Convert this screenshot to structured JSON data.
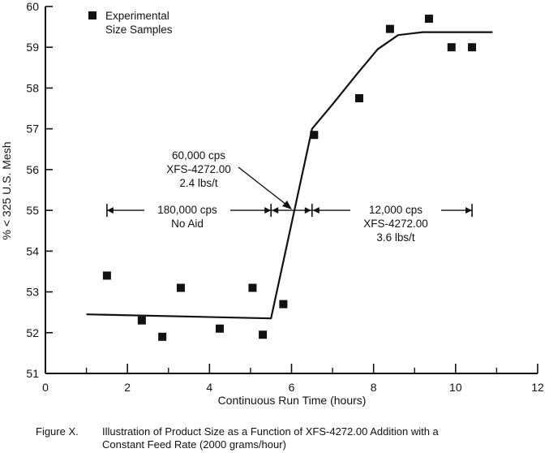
{
  "chart_data": {
    "type": "scatter",
    "xlabel": "Continuous Run Time (hours)",
    "ylabel": "% < 325 U.S. Mesh",
    "xlim": [
      0,
      12
    ],
    "ylim": [
      51,
      60
    ],
    "x_ticks": [
      0,
      2,
      4,
      6,
      8,
      10,
      12
    ],
    "y_ticks": [
      51,
      52,
      53,
      54,
      55,
      56,
      57,
      58,
      59,
      60
    ],
    "legend": {
      "position": "top-left",
      "marker": "square",
      "line1": "Experimental",
      "line2": "Size Samples"
    },
    "series": [
      {
        "name": "Experimental Size Samples",
        "type": "scatter",
        "points": [
          {
            "x": 1.5,
            "y": 53.4
          },
          {
            "x": 2.35,
            "y": 52.3
          },
          {
            "x": 2.85,
            "y": 51.9
          },
          {
            "x": 3.3,
            "y": 53.1
          },
          {
            "x": 4.25,
            "y": 52.1
          },
          {
            "x": 5.05,
            "y": 53.1
          },
          {
            "x": 5.3,
            "y": 51.95
          },
          {
            "x": 5.8,
            "y": 52.7
          },
          {
            "x": 6.55,
            "y": 56.85
          },
          {
            "x": 7.65,
            "y": 57.75
          },
          {
            "x": 8.4,
            "y": 59.45
          },
          {
            "x": 9.35,
            "y": 59.7
          },
          {
            "x": 9.9,
            "y": 59.0
          },
          {
            "x": 10.4,
            "y": 59.0
          }
        ]
      },
      {
        "type": "line",
        "points": [
          {
            "x": 1.0,
            "y": 52.45
          },
          {
            "x": 5.5,
            "y": 52.35
          },
          {
            "x": 6.5,
            "y": 57.0
          },
          {
            "x": 7.0,
            "y": 57.6
          },
          {
            "x": 7.6,
            "y": 58.35
          },
          {
            "x": 8.1,
            "y": 58.95
          },
          {
            "x": 8.6,
            "y": 59.3
          },
          {
            "x": 9.2,
            "y": 59.37
          },
          {
            "x": 10.9,
            "y": 59.37
          }
        ]
      }
    ],
    "annotations": [
      {
        "lines": [
          "180,000 cps",
          "No Aid"
        ],
        "span": [
          1.5,
          5.5
        ]
      },
      {
        "lines": [
          "60,000 cps",
          "XFS-4272.00",
          "2.4 lbs/t"
        ],
        "span": [
          5.5,
          6.5
        ]
      },
      {
        "lines": [
          "12,000 cps",
          "XFS-4272.00",
          "3.6 lbs/t"
        ],
        "span": [
          6.5,
          10.4
        ]
      }
    ]
  },
  "caption": {
    "figure_label": "Figure X.",
    "line1": "Illustration of Product Size as a Function of XFS-4272.00 Addition with a",
    "line2": "Constant Feed Rate (2000 grams/hour)"
  }
}
